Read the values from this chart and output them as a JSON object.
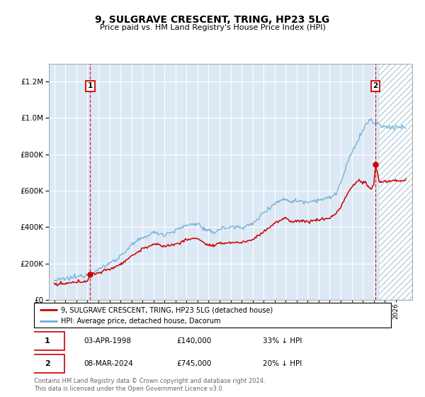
{
  "title": "9, SULGRAVE CRESCENT, TRING, HP23 5LG",
  "subtitle": "Price paid vs. HM Land Registry's House Price Index (HPI)",
  "legend_line1": "9, SULGRAVE CRESCENT, TRING, HP23 5LG (detached house)",
  "legend_line2": "HPI: Average price, detached house, Dacorum",
  "annotation1_date": "03-APR-1998",
  "annotation1_price": 140000,
  "annotation1_price_str": "£140,000",
  "annotation1_hpi": "33% ↓ HPI",
  "annotation2_date": "08-MAR-2024",
  "annotation2_price": 745000,
  "annotation2_price_str": "£745,000",
  "annotation2_hpi": "20% ↓ HPI",
  "footer": "Contains HM Land Registry data © Crown copyright and database right 2024.\nThis data is licensed under the Open Government Licence v3.0.",
  "hpi_color": "#6baed6",
  "price_color": "#cc0000",
  "bg_color": "#dce9f5",
  "grid_color": "#ffffff",
  "ylim": [
    0,
    1300000
  ],
  "yticks": [
    0,
    200000,
    400000,
    600000,
    800000,
    1000000,
    1200000
  ],
  "xlim_start": 1994.5,
  "xlim_end": 2027.5,
  "ann1_x": 1998.25,
  "ann1_y": 140000,
  "ann2_x": 2024.17,
  "ann2_y": 745000,
  "future_start": 2024.5
}
